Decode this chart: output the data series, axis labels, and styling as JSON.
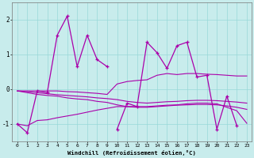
{
  "xlabel": "Windchill (Refroidissement éolien,°C)",
  "bg_color": "#c8ecec",
  "line_color": "#aa00aa",
  "grid_color": "#98d8d8",
  "xlim": [
    -0.5,
    23.5
  ],
  "ylim": [
    -1.5,
    2.5
  ],
  "yticks": [
    -1,
    0,
    1,
    2
  ],
  "xticks": [
    0,
    1,
    2,
    3,
    4,
    5,
    6,
    7,
    8,
    9,
    10,
    11,
    12,
    13,
    14,
    15,
    16,
    17,
    18,
    19,
    20,
    21,
    22,
    23
  ],
  "spiky1_x": [
    0,
    1,
    2,
    3,
    4,
    5,
    6,
    7,
    8,
    9
  ],
  "spiky1_y": [
    -1.0,
    -1.25,
    -0.05,
    -0.1,
    1.55,
    2.1,
    0.65,
    1.55,
    0.85,
    0.65
  ],
  "spiky2_x": [
    10,
    11,
    12,
    13,
    14,
    15,
    16,
    17,
    18,
    19,
    20,
    21,
    22,
    23
  ],
  "spiky2_y": [
    -1.15,
    -0.4,
    -0.5,
    1.35,
    1.05,
    0.6,
    1.25,
    1.35,
    0.35,
    0.4,
    -1.15,
    -0.2,
    -1.05,
    null
  ],
  "trend_upper_x": [
    0,
    1,
    2,
    3,
    4,
    5,
    6,
    7,
    8,
    9,
    10,
    11,
    12,
    13,
    14,
    15,
    16,
    17,
    18,
    19,
    20,
    21,
    22,
    23
  ],
  "trend_upper_y": [
    -0.05,
    -0.05,
    -0.05,
    -0.05,
    -0.05,
    -0.07,
    -0.08,
    -0.1,
    -0.12,
    -0.15,
    0.15,
    0.22,
    0.25,
    0.27,
    0.4,
    0.45,
    0.42,
    0.45,
    0.45,
    0.43,
    0.42,
    0.4,
    0.38,
    0.38
  ],
  "trend_mid1_x": [
    0,
    1,
    2,
    3,
    4,
    5,
    6,
    7,
    8,
    9,
    10,
    11,
    12,
    13,
    14,
    15,
    16,
    17,
    18,
    19,
    20,
    21,
    22,
    23
  ],
  "trend_mid1_y": [
    -0.05,
    -0.07,
    -0.1,
    -0.13,
    -0.16,
    -0.18,
    -0.2,
    -0.22,
    -0.25,
    -0.27,
    -0.3,
    -0.35,
    -0.38,
    -0.4,
    -0.38,
    -0.36,
    -0.35,
    -0.33,
    -0.32,
    -0.32,
    -0.33,
    -0.35,
    -0.37,
    -0.4
  ],
  "trend_mid2_x": [
    0,
    1,
    2,
    3,
    4,
    5,
    6,
    7,
    8,
    9,
    10,
    11,
    12,
    13,
    14,
    15,
    16,
    17,
    18,
    19,
    20,
    21,
    22,
    23
  ],
  "trend_mid2_y": [
    -0.05,
    -0.1,
    -0.15,
    -0.18,
    -0.2,
    -0.25,
    -0.28,
    -0.3,
    -0.35,
    -0.38,
    -0.45,
    -0.5,
    -0.52,
    -0.52,
    -0.5,
    -0.48,
    -0.46,
    -0.45,
    -0.44,
    -0.44,
    -0.45,
    -0.48,
    -0.52,
    -0.58
  ],
  "trend_lower_x": [
    0,
    1,
    2,
    3,
    4,
    5,
    6,
    7,
    8,
    9,
    10,
    11,
    12,
    13,
    14,
    15,
    16,
    17,
    18,
    19,
    20,
    21,
    22,
    23
  ],
  "trend_lower_y": [
    -1.0,
    -1.05,
    -0.9,
    -0.88,
    -0.82,
    -0.77,
    -0.72,
    -0.66,
    -0.6,
    -0.55,
    -0.5,
    -0.5,
    -0.5,
    -0.5,
    -0.48,
    -0.46,
    -0.45,
    -0.42,
    -0.4,
    -0.4,
    -0.42,
    -0.52,
    -0.62,
    -0.98
  ]
}
